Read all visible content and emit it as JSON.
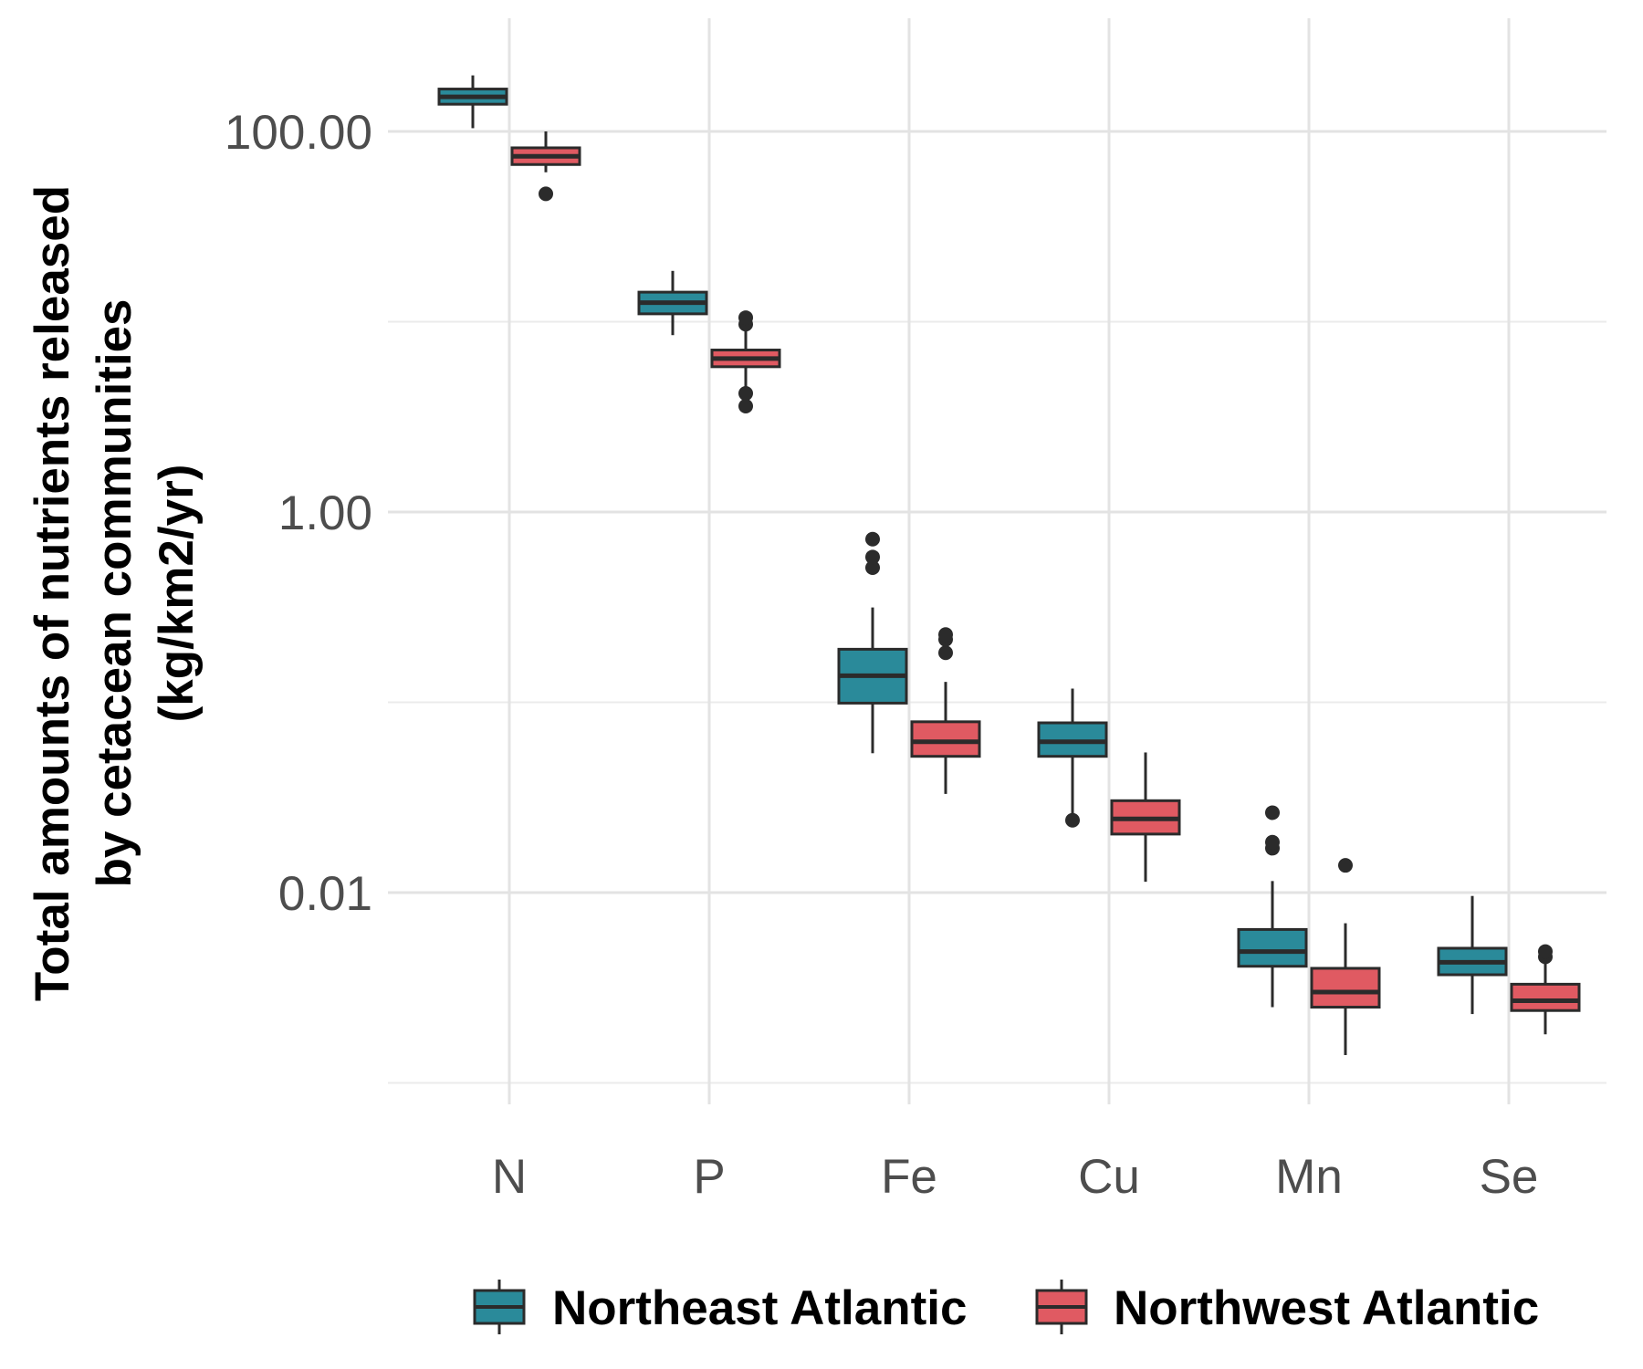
{
  "chart_data": {
    "type": "boxplot",
    "y_scale": "log10",
    "ylabel_lines": [
      "Total amounts of nutrients released",
      "by cetacean communities",
      "(kg/km2/yr)"
    ],
    "y_ticks": [
      {
        "value": 100,
        "label": "100.00"
      },
      {
        "value": 1,
        "label": "1.00"
      },
      {
        "value": 0.01,
        "label": "0.01"
      }
    ],
    "categories": [
      "N",
      "P",
      "Fe",
      "Cu",
      "Mn",
      "Se"
    ],
    "legend_position": "bottom",
    "grid": true,
    "series": [
      {
        "name": "Northeast Atlantic",
        "color": "#2a8a9a",
        "boxes": [
          {
            "category": "N",
            "whisker_low": 104,
            "q1": 139,
            "median": 152,
            "q3": 167,
            "whisker_high": 197,
            "outliers": []
          },
          {
            "category": "P",
            "whisker_low": 8.5,
            "q1": 11.0,
            "median": 12.6,
            "q3": 14.3,
            "whisker_high": 18.5,
            "outliers": []
          },
          {
            "category": "Fe",
            "whisker_low": 0.054,
            "q1": 0.099,
            "median": 0.138,
            "q3": 0.19,
            "whisker_high": 0.315,
            "outliers": [
              0.51,
              0.58,
              0.72
            ]
          },
          {
            "category": "Cu",
            "whisker_low": 0.023,
            "q1": 0.052,
            "median": 0.062,
            "q3": 0.078,
            "whisker_high": 0.118,
            "outliers": [
              0.024
            ]
          },
          {
            "category": "Mn",
            "whisker_low": 0.0025,
            "q1": 0.0041,
            "median": 0.0049,
            "q3": 0.0064,
            "whisker_high": 0.0115,
            "outliers": [
              0.0171,
              0.0184,
              0.0263
            ]
          },
          {
            "category": "Se",
            "whisker_low": 0.0023,
            "q1": 0.0037,
            "median": 0.0043,
            "q3": 0.0051,
            "whisker_high": 0.0096,
            "outliers": []
          }
        ]
      },
      {
        "name": "Northwest Atlantic",
        "color": "#e05a62",
        "boxes": [
          {
            "category": "N",
            "whisker_low": 61,
            "q1": 67,
            "median": 74,
            "q3": 82,
            "whisker_high": 100,
            "outliers": [
              47
            ]
          },
          {
            "category": "P",
            "whisker_low": 4.4,
            "q1": 5.8,
            "median": 6.4,
            "q3": 7.1,
            "whisker_high": 9.0,
            "outliers": [
              3.6,
              4.2,
              9.7,
              10.5
            ]
          },
          {
            "category": "Fe",
            "whisker_low": 0.033,
            "q1": 0.052,
            "median": 0.062,
            "q3": 0.079,
            "whisker_high": 0.128,
            "outliers": [
              0.182,
              0.214,
              0.227
            ]
          },
          {
            "category": "Cu",
            "whisker_low": 0.0114,
            "q1": 0.0203,
            "median": 0.0244,
            "q3": 0.0304,
            "whisker_high": 0.0545,
            "outliers": []
          },
          {
            "category": "Mn",
            "whisker_low": 0.0014,
            "q1": 0.0025,
            "median": 0.003,
            "q3": 0.004,
            "whisker_high": 0.0069,
            "outliers": [
              0.0139
            ]
          },
          {
            "category": "Se",
            "whisker_low": 0.0018,
            "q1": 0.0024,
            "median": 0.0027,
            "q3": 0.0033,
            "whisker_high": 0.0047,
            "outliers": [
              0.0046,
              0.0049
            ]
          }
        ]
      }
    ]
  }
}
